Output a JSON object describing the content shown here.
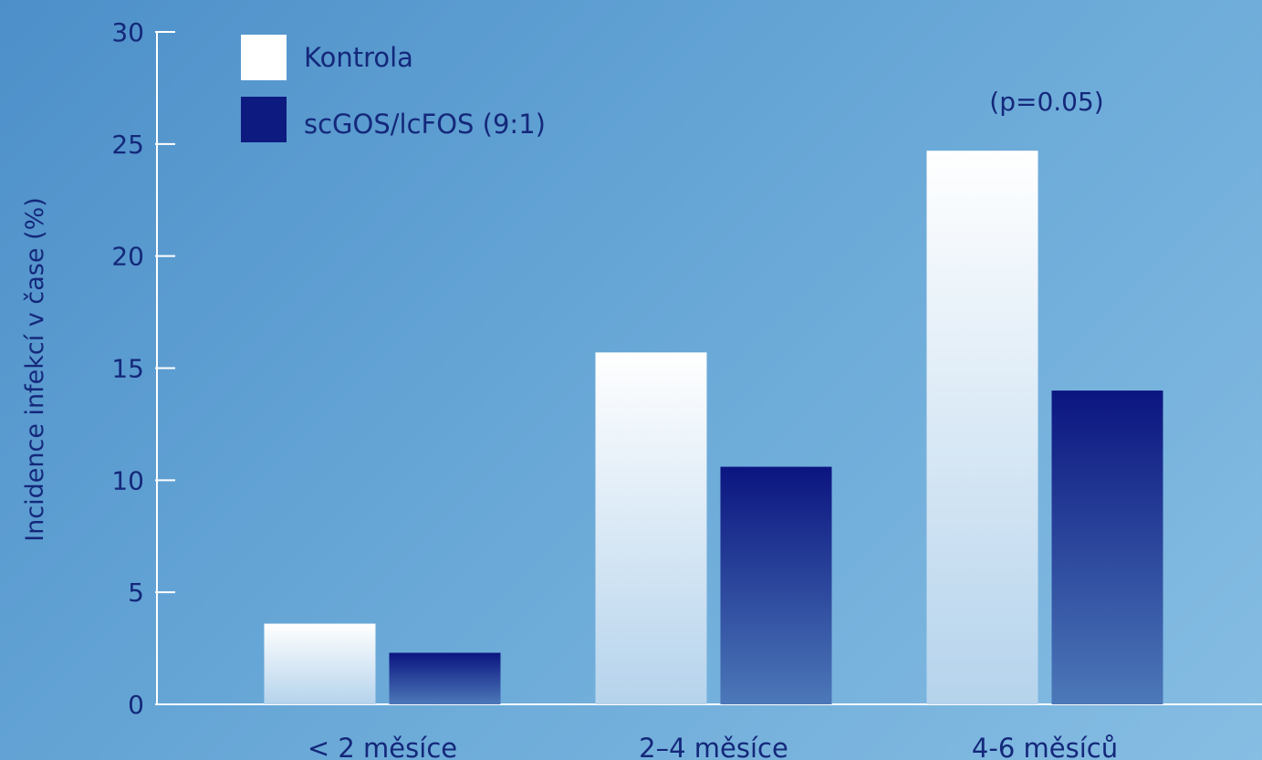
{
  "chart_data": {
    "type": "bar",
    "title": "",
    "xlabel": "",
    "ylabel": "Incidence infekcí v čase (%)",
    "ylim": [
      0,
      30
    ],
    "yticks": [
      0,
      5,
      10,
      15,
      20,
      25,
      30
    ],
    "grid": false,
    "legend_position": "top-left",
    "categories": [
      "< 2 měsíce",
      "2–4 měsíce",
      "4-6 měsíců"
    ],
    "series": [
      {
        "name": "Kontrola",
        "values": [
          3.6,
          15.7,
          24.7
        ],
        "color": "#ffffff"
      },
      {
        "name": "scGOS/lcFOS (9:1)",
        "values": [
          2.3,
          10.6,
          14.0
        ],
        "color": "#0d1a7f"
      }
    ],
    "annotations": [
      {
        "text": "(p=0.05)",
        "category_index": 2
      }
    ],
    "colors": {
      "axis": "#ffffff",
      "text": "#14287a",
      "background_start": "#4d8fc9",
      "background_end": "#86bde3"
    }
  }
}
